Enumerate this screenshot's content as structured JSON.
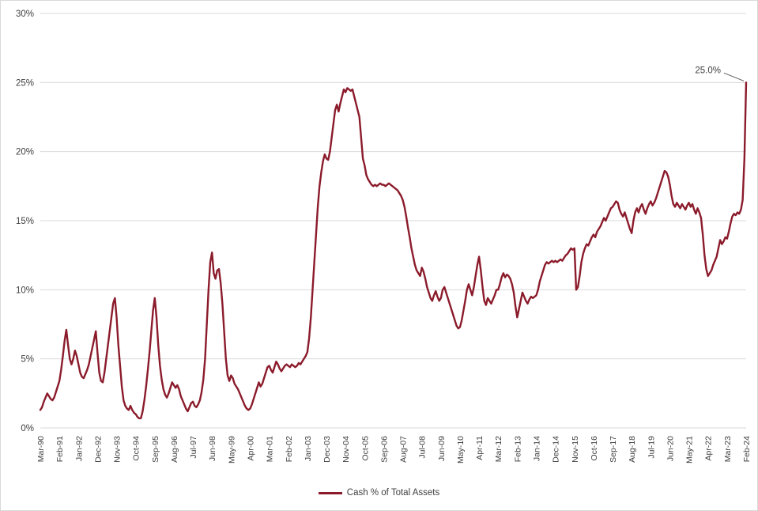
{
  "figure": {
    "legend": {
      "label": "Cash % of Total Assets"
    },
    "annotation_label": "25.0%"
  },
  "chart_data": {
    "type": "line",
    "title": "",
    "series_name": "Cash % of Total Assets",
    "x_start": "Mar-90",
    "x_frequency": "monthly",
    "x_tick_interval": 11,
    "x_tick_labels": [
      "Mar-90",
      "Feb-91",
      "Jan-92",
      "Dec-92",
      "Nov-93",
      "Oct-94",
      "Sep-95",
      "Aug-96",
      "Jul-97",
      "Jun-98",
      "May-99",
      "Apr-00",
      "Mar-01",
      "Feb-02",
      "Jan-03",
      "Dec-03",
      "Nov-04",
      "Oct-05",
      "Sep-06",
      "Aug-07",
      "Jul-08",
      "Jun-09",
      "May-10",
      "Apr-11",
      "Mar-12",
      "Feb-13",
      "Jan-14",
      "Dec-14",
      "Nov-15",
      "Oct-16",
      "Sep-17",
      "Aug-18",
      "Jul-19",
      "Jun-20",
      "May-21",
      "Apr-22",
      "Mar-23",
      "Feb-24"
    ],
    "y_tick_labels": [
      "0%",
      "5%",
      "10%",
      "15%",
      "20%",
      "25%",
      "30%"
    ],
    "ylim": [
      0,
      30
    ],
    "grid": true,
    "legend_position": "bottom-center",
    "line_color": "#8b1b2b",
    "gridline_color": "#d9d9d9",
    "annotation": {
      "text": "25.0%",
      "at": "last-point"
    },
    "values": [
      1.3,
      1.5,
      1.9,
      2.2,
      2.5,
      2.3,
      2.1,
      2.0,
      2.2,
      2.6,
      3.0,
      3.4,
      4.2,
      5.2,
      6.3,
      7.1,
      6.0,
      5.0,
      4.6,
      5.0,
      5.6,
      5.2,
      4.6,
      4.0,
      3.7,
      3.6,
      3.9,
      4.2,
      4.6,
      5.2,
      5.8,
      6.4,
      7.0,
      5.4,
      4.0,
      3.4,
      3.3,
      4.0,
      5.0,
      6.0,
      7.0,
      8.0,
      9.0,
      9.4,
      8.0,
      6.0,
      4.5,
      3.0,
      2.0,
      1.6,
      1.4,
      1.3,
      1.6,
      1.3,
      1.1,
      1.0,
      0.8,
      0.7,
      0.7,
      1.2,
      2.0,
      3.0,
      4.2,
      5.5,
      7.0,
      8.5,
      9.4,
      8.0,
      6.0,
      4.5,
      3.5,
      2.8,
      2.4,
      2.2,
      2.5,
      2.9,
      3.3,
      3.1,
      2.9,
      3.1,
      2.8,
      2.3,
      2.0,
      1.7,
      1.4,
      1.2,
      1.5,
      1.8,
      1.9,
      1.6,
      1.5,
      1.7,
      2.0,
      2.6,
      3.5,
      5.0,
      7.5,
      10.0,
      12.0,
      12.7,
      11.2,
      10.8,
      11.4,
      11.5,
      10.5,
      9.0,
      7.0,
      5.0,
      3.8,
      3.4,
      3.8,
      3.6,
      3.2,
      3.0,
      2.8,
      2.5,
      2.2,
      1.9,
      1.6,
      1.4,
      1.3,
      1.4,
      1.7,
      2.1,
      2.5,
      2.9,
      3.3,
      3.0,
      3.2,
      3.6,
      4.0,
      4.4,
      4.5,
      4.2,
      4.0,
      4.4,
      4.8,
      4.6,
      4.3,
      4.1,
      4.3,
      4.5,
      4.6,
      4.5,
      4.4,
      4.6,
      4.5,
      4.4,
      4.5,
      4.7,
      4.6,
      4.8,
      5.0,
      5.2,
      5.5,
      6.5,
      8.0,
      10.0,
      12.0,
      14.0,
      16.0,
      17.5,
      18.5,
      19.3,
      19.8,
      19.5,
      19.4,
      20.0,
      21.0,
      22.0,
      23.0,
      23.4,
      22.9,
      23.5,
      24.0,
      24.5,
      24.3,
      24.6,
      24.5,
      24.4,
      24.5,
      24.0,
      23.5,
      23.0,
      22.5,
      21.0,
      19.5,
      19.0,
      18.3,
      18.0,
      17.8,
      17.6,
      17.5,
      17.6,
      17.5,
      17.6,
      17.7,
      17.6,
      17.6,
      17.5,
      17.6,
      17.7,
      17.6,
      17.5,
      17.4,
      17.3,
      17.2,
      17.0,
      16.8,
      16.5,
      16.0,
      15.3,
      14.5,
      13.8,
      13.0,
      12.4,
      11.8,
      11.4,
      11.2,
      11.0,
      11.6,
      11.3,
      10.8,
      10.2,
      9.8,
      9.4,
      9.2,
      9.6,
      9.9,
      9.5,
      9.2,
      9.4,
      10.0,
      10.2,
      9.8,
      9.4,
      9.0,
      8.6,
      8.2,
      7.8,
      7.4,
      7.2,
      7.3,
      7.8,
      8.5,
      9.2,
      10.0,
      10.4,
      10.0,
      9.6,
      10.2,
      11.0,
      11.8,
      12.4,
      11.4,
      10.2,
      9.2,
      8.9,
      9.4,
      9.2,
      9.0,
      9.3,
      9.6,
      10.0,
      10.0,
      10.4,
      10.9,
      11.2,
      10.9,
      11.1,
      11.0,
      10.8,
      10.4,
      9.8,
      8.8,
      8.0,
      8.6,
      9.2,
      9.8,
      9.5,
      9.2,
      9.0,
      9.3,
      9.5,
      9.4,
      9.5,
      9.6,
      10.0,
      10.6,
      11.0,
      11.4,
      11.8,
      12.0,
      11.9,
      12.0,
      12.1,
      12.0,
      12.1,
      12.0,
      12.1,
      12.2,
      12.1,
      12.3,
      12.5,
      12.6,
      12.8,
      13.0,
      12.9,
      13.0,
      10.0,
      10.2,
      11.0,
      12.0,
      12.6,
      13.0,
      13.3,
      13.2,
      13.5,
      13.8,
      14.0,
      13.8,
      14.2,
      14.4,
      14.6,
      14.9,
      15.2,
      15.0,
      15.3,
      15.6,
      15.9,
      16.0,
      16.2,
      16.4,
      16.3,
      15.8,
      15.5,
      15.3,
      15.6,
      15.2,
      14.8,
      14.4,
      14.1,
      15.0,
      15.6,
      15.9,
      15.6,
      16.0,
      16.2,
      15.8,
      15.5,
      15.9,
      16.2,
      16.4,
      16.1,
      16.3,
      16.6,
      17.0,
      17.4,
      17.8,
      18.2,
      18.6,
      18.5,
      18.2,
      17.6,
      16.8,
      16.2,
      16.0,
      16.3,
      16.1,
      15.9,
      16.2,
      16.0,
      15.8,
      16.1,
      16.3,
      16.0,
      16.2,
      15.8,
      15.5,
      15.9,
      15.6,
      15.2,
      14.0,
      12.5,
      11.5,
      11.0,
      11.2,
      11.4,
      11.8,
      12.1,
      12.4,
      13.0,
      13.6,
      13.3,
      13.5,
      13.8,
      13.7,
      14.2,
      14.8,
      15.3,
      15.5,
      15.4,
      15.6,
      15.5,
      15.8,
      16.5,
      19.5,
      25.0
    ]
  }
}
